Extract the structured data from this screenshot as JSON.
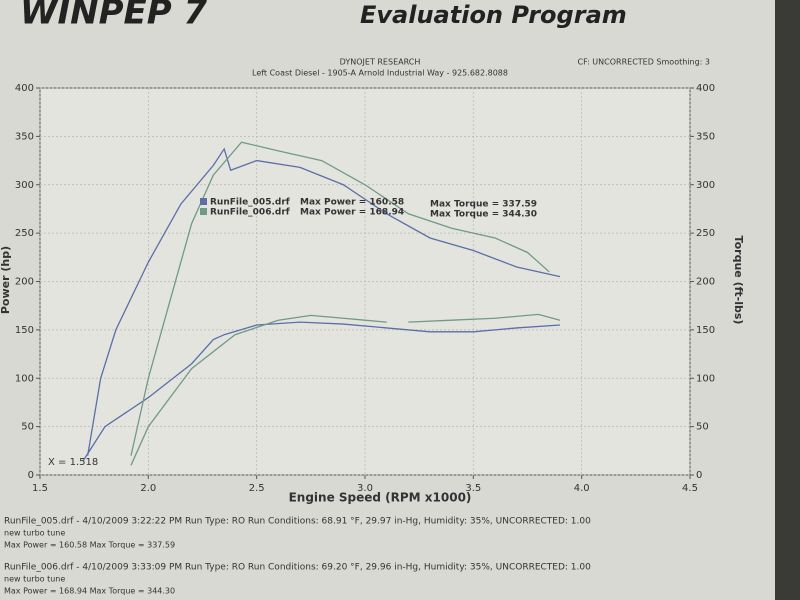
{
  "header": {
    "logo": "WINPEP 7",
    "program": "Evaluation Program"
  },
  "chart_data": {
    "type": "line",
    "title": "DYNOJET RESEARCH",
    "subtitle": "Left Coast Diesel - 1905-A Arnold Industrial Way - 925.682.8088",
    "note": "CF: UNCORRECTED Smoothing: 3",
    "x_label": "Engine Speed (RPM x1000)",
    "y_label": "Power (hp)",
    "y2_label": "Torque (ft-lbs)",
    "xlim": [
      1.5,
      4.5
    ],
    "xticks": [
      1.5,
      {
        "value": 2,
        "label": "2.0"
      },
      2.5,
      {
        "value": 3,
        "label": "3.0"
      },
      3.5,
      {
        "value": 4,
        "label": "4.0"
      },
      4.5
    ],
    "ylim": [
      0,
      400
    ],
    "yticks": [
      0,
      50,
      100,
      150,
      200,
      250,
      300,
      350,
      400
    ],
    "y2lim": [
      0,
      400
    ],
    "y2ticks": [
      0,
      50,
      100,
      150,
      200,
      250,
      300,
      350,
      400
    ],
    "grid": true,
    "series": [
      {
        "name": "RunFile_005.drf",
        "color": "#5a6fa8",
        "axis": "y",
        "x": [
          1.7,
          1.8,
          2.0,
          2.2,
          2.3,
          2.35,
          2.5,
          2.7,
          2.9,
          3.1,
          3.3,
          3.5,
          3.7,
          3.9
        ],
        "values": [
          15,
          50,
          80,
          115,
          140,
          145,
          155,
          158,
          156,
          152,
          148,
          148,
          152,
          155
        ]
      },
      {
        "name": "RunFile_006.drf",
        "color": "#6f9a86",
        "axis": "y",
        "x": [
          1.92,
          2.0,
          2.2,
          2.4,
          2.6,
          2.75,
          2.9,
          3.0,
          3.1,
          3.15,
          3.2,
          3.4,
          3.6,
          3.8,
          3.9
        ],
        "values": [
          10,
          50,
          110,
          145,
          160,
          165,
          162,
          160,
          158,
          null,
          158,
          160,
          162,
          166,
          160
        ]
      },
      {
        "color": "#5a6fa8",
        "axis": "y2",
        "x": [
          1.72,
          1.78,
          1.85,
          2.0,
          2.15,
          2.3,
          2.35,
          2.38,
          2.5,
          2.7,
          2.9,
          3.1,
          3.3,
          3.5,
          3.7,
          3.9
        ],
        "values": [
          20,
          100,
          150,
          220,
          280,
          320,
          337,
          315,
          325,
          318,
          300,
          270,
          245,
          232,
          215,
          205
        ]
      },
      {
        "color": "#6f9a86",
        "axis": "y2",
        "x": [
          1.92,
          2.0,
          2.1,
          2.2,
          2.3,
          2.43,
          2.6,
          2.8,
          3.0,
          3.2,
          3.4,
          3.6,
          3.75,
          3.85
        ],
        "values": [
          20,
          100,
          180,
          260,
          310,
          344,
          335,
          325,
          300,
          270,
          255,
          245,
          230,
          210
        ]
      }
    ],
    "annotations": [
      "Max Power = 160.58",
      "Max Power = 168.94",
      "Max Torque = 337.59",
      "Max Torque = 344.30",
      "X = 1.518"
    ]
  },
  "footer": [
    "RunFile_005.drf - 4/10/2009 3:22:22 PM  Run Type: RO  Run Conditions: 68.91 °F, 29.97 in-Hg,  Humidity:  35%, UNCORRECTED: 1.00",
    "new turbo tune",
    "Max Power = 160.58  Max Torque = 337.59",
    "RunFile_006.drf - 4/10/2009 3:33:09 PM  Run Type: RO  Run Conditions: 69.20 °F, 29.96 in-Hg,  Humidity:  35%, UNCORRECTED: 1.00",
    "new turbo tune",
    "Max Power = 168.94  Max Torque = 344.30"
  ]
}
